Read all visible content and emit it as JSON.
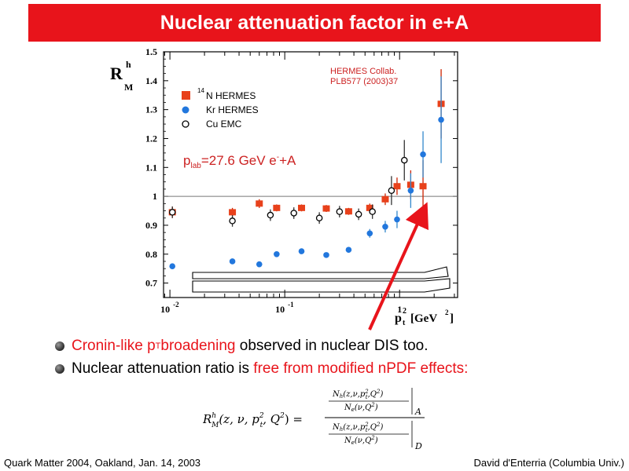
{
  "slide_title": "Nuclear attenuation factor in e+A",
  "chart_data": {
    "type": "scatter",
    "xscale": "log",
    "xlim": [
      0.0088,
      3.2
    ],
    "ylim": [
      0.65,
      1.5
    ],
    "xticks": [
      {
        "value": 0.01,
        "label": "10",
        "sup": "-2"
      },
      {
        "value": 0.1,
        "label": "10",
        "sup": "-1"
      },
      {
        "value": 1,
        "label": "1",
        "sup": ""
      }
    ],
    "yticks": [
      0.7,
      0.8,
      0.9,
      1,
      1.1,
      1.2,
      1.3,
      1.4,
      1.5
    ],
    "ylabel_main": "R",
    "ylabel_sup": "h",
    "ylabel_sub": "M",
    "xlabel_main": "p",
    "xlabel_sub": "t",
    "xlabel_sup": "2",
    "xlabel_unit": "[GeV",
    "reference_line": 1.0,
    "annotation": {
      "line1": "HERMES Collab.",
      "line2": "PLB577 (2003)37"
    },
    "beam_label": {
      "p": "p",
      "p_sub": "lab",
      "text": "=27.6 GeV e",
      "e_sup": "-",
      "tail": "+A"
    },
    "series": [
      {
        "name_sup": "14",
        "name": "N  HERMES",
        "marker": "square",
        "color": "#e8411b",
        "errcolor": "#cc2200",
        "points": [
          [
            0.0105,
            0.945,
            0.02
          ],
          [
            0.035,
            0.945,
            0.015
          ],
          [
            0.06,
            0.975,
            0.015
          ],
          [
            0.085,
            0.96,
            0.012
          ],
          [
            0.14,
            0.96,
            0.012
          ],
          [
            0.23,
            0.958,
            0.012
          ],
          [
            0.36,
            0.948,
            0.012
          ],
          [
            0.55,
            0.96,
            0.015
          ],
          [
            0.75,
            0.99,
            0.02
          ],
          [
            0.95,
            1.035,
            0.03
          ],
          [
            1.25,
            1.04,
            0.05
          ],
          [
            1.6,
            1.035,
            0.09
          ],
          [
            2.3,
            1.32,
            0.12
          ]
        ]
      },
      {
        "name": "Kr HERMES",
        "marker": "circle",
        "color": "#2277dd",
        "errcolor": "#3388cc",
        "points": [
          [
            0.0105,
            0.758,
            0.008
          ],
          [
            0.035,
            0.775,
            0.008
          ],
          [
            0.06,
            0.765,
            0.008
          ],
          [
            0.085,
            0.8,
            0.008
          ],
          [
            0.14,
            0.81,
            0.008
          ],
          [
            0.23,
            0.797,
            0.008
          ],
          [
            0.36,
            0.815,
            0.01
          ],
          [
            0.55,
            0.872,
            0.015
          ],
          [
            0.75,
            0.895,
            0.02
          ],
          [
            0.95,
            0.92,
            0.03
          ],
          [
            1.25,
            1.02,
            0.06
          ],
          [
            1.6,
            1.145,
            0.08
          ],
          [
            2.3,
            1.265,
            0.15
          ]
        ]
      },
      {
        "name": "Cu  EMC",
        "marker": "open-circle",
        "color": "#000000",
        "errcolor": "#333333",
        "points": [
          [
            0.0105,
            0.945,
            0.02
          ],
          [
            0.035,
            0.915,
            0.02
          ],
          [
            0.075,
            0.935,
            0.02
          ],
          [
            0.12,
            0.942,
            0.02
          ],
          [
            0.2,
            0.925,
            0.02
          ],
          [
            0.3,
            0.947,
            0.02
          ],
          [
            0.44,
            0.938,
            0.02
          ],
          [
            0.58,
            0.947,
            0.025
          ],
          [
            0.85,
            1.02,
            0.05
          ],
          [
            1.1,
            1.125,
            0.07
          ]
        ]
      }
    ]
  },
  "bullets": [
    {
      "red_a": "Cronin-like p",
      "red_sub": "T",
      "red_b": " broadening",
      "black": " observed in nuclear DIS too."
    },
    {
      "black": "Nuclear attenuation ratio is ",
      "red": "free from modified nPDF effects:"
    }
  ],
  "formula": {
    "lhs_R": "R",
    "lhs_sup": "h",
    "lhs_sub": "M",
    "lhs_args_a": "(z, ν, p",
    "lhs_p_sub": "t",
    "lhs_p_sup": "2",
    "lhs_args_b": ", Q",
    "lhs_q_sup": "2",
    "lhs_close": ") =",
    "top_num": "N",
    "top_num_sub": "h",
    "top_num_args": "(z,ν,p",
    "top_num_args2": ",Q",
    "top_num_close": ")",
    "top_den": "N",
    "top_den_sub": "e",
    "top_den_args": "(ν,Q",
    "top_den_close": ")",
    "bot_num": "N",
    "bot_num_sub": "h",
    "bot_num_args": "(z,ν,p",
    "bot_num_args2": ",Q",
    "bot_num_close": ")",
    "bot_den": "N",
    "bot_den_sub": "e",
    "bot_den_args": "(ν,Q",
    "bot_den_close": ")",
    "sub_t": "t",
    "sup_2": "2",
    "label_A": "A",
    "label_D": "D"
  },
  "footer": {
    "left": "Quark Matter 2004, Oakland, Jan. 14, 2003",
    "right": "David d'Enterria (Columbia Univ.)"
  }
}
